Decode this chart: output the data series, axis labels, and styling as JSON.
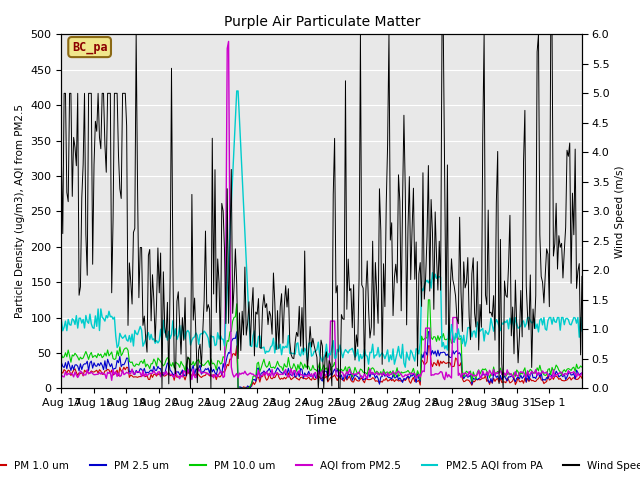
{
  "title": "Purple Air Particulate Matter",
  "xlabel": "Time",
  "ylabel_left": "Particle Density (ug/m3), AQI from PM2.5",
  "ylabel_right": "Wind Speed (m/s)",
  "ylim_left": [
    0,
    500
  ],
  "ylim_right": [
    0,
    6.0
  ],
  "annotation_text": "BC_pa",
  "annotation_box_color": "#f0e68c",
  "annotation_text_color": "#8b0000",
  "background_plot": "#e8e8e8",
  "x_tick_labels": [
    "Aug 17",
    "Aug 18",
    "Aug 19",
    "Aug 20",
    "Aug 21",
    "Aug 22",
    "Aug 23",
    "Aug 24",
    "Aug 25",
    "Aug 26",
    "Aug 27",
    "Aug 28",
    "Aug 29",
    "Aug 30",
    "Aug 31",
    "Sep 1"
  ],
  "series_colors": {
    "pm1": "#cc0000",
    "pm25": "#0000cc",
    "pm10": "#00cc00",
    "aqi_pm25": "#cc00cc",
    "aqi_pa": "#00cccc",
    "wind": "#000000"
  },
  "legend_labels": [
    "PM 1.0 um",
    "PM 2.5 um",
    "PM 10.0 um",
    "AQI from PM2.5",
    "PM2.5 AQI from PA",
    "Wind Speed"
  ],
  "legend_colors": [
    "#cc0000",
    "#0000cc",
    "#00cc00",
    "#cc00cc",
    "#00cccc",
    "#000000"
  ]
}
